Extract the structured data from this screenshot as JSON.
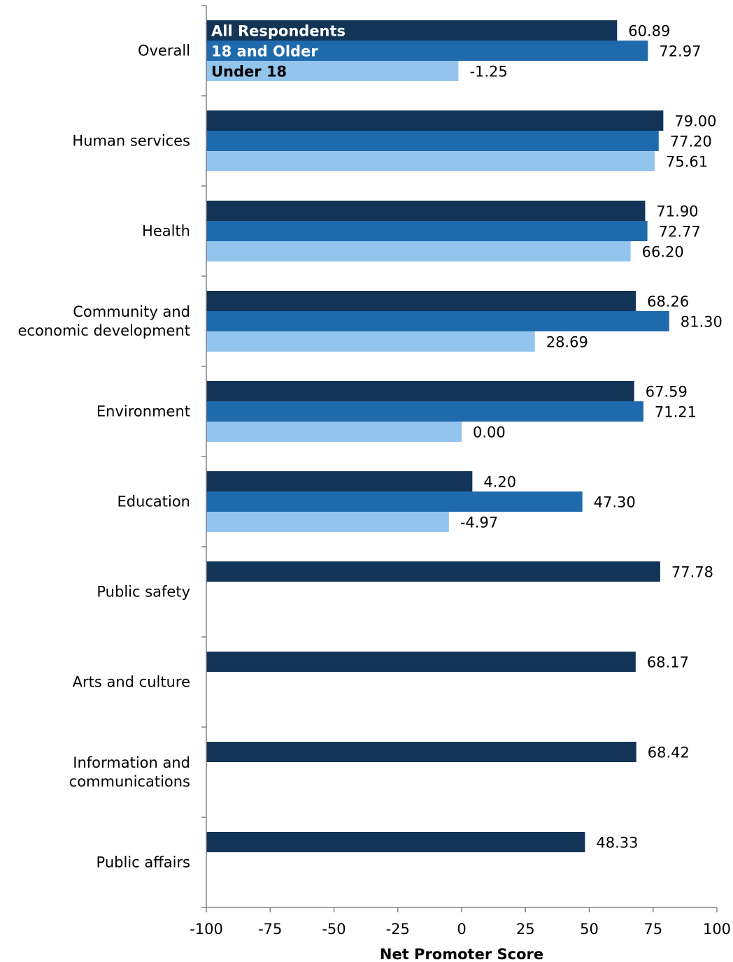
{
  "chart_data": {
    "type": "bar",
    "orientation": "horizontal",
    "xlabel": "Net Promoter Score",
    "xlim": [
      -100,
      100
    ],
    "xticks": [
      -100,
      -75,
      -50,
      -25,
      0,
      25,
      50,
      75,
      100
    ],
    "grid": false,
    "legend_placement": "inside first category group",
    "categories": [
      [
        "Overall"
      ],
      [
        "Human services"
      ],
      [
        "Health"
      ],
      [
        "Community and",
        "economic development"
      ],
      [
        "Environment"
      ],
      [
        "Education"
      ],
      [
        "Public safety"
      ],
      [
        "Arts and culture"
      ],
      [
        "Information and",
        "communications"
      ],
      [
        "Public affairs"
      ]
    ],
    "series": [
      {
        "name": "All Respondents",
        "color": "#123456",
        "label_color": "#ffffff",
        "values": [
          60.89,
          79.0,
          71.9,
          68.26,
          67.59,
          4.2,
          77.78,
          68.17,
          68.42,
          48.33
        ],
        "labels": [
          "60.89",
          "79.00",
          "71.90",
          "68.26",
          "67.59",
          "4.20",
          "77.78",
          "68.17",
          "68.42",
          "48.33"
        ]
      },
      {
        "name": "18 and Older",
        "color": "#1f6aad",
        "label_color": "#ffffff",
        "values": [
          72.97,
          77.2,
          72.77,
          81.3,
          71.21,
          47.3,
          null,
          null,
          null,
          null
        ],
        "labels": [
          "72.97",
          "77.20",
          "72.77",
          "81.30",
          "71.21",
          "47.30",
          null,
          null,
          null,
          null
        ]
      },
      {
        "name": "Under 18",
        "color": "#93c4ee",
        "label_color": "#000000",
        "values": [
          -1.25,
          75.61,
          66.2,
          28.69,
          0.0,
          -4.97,
          null,
          null,
          null,
          null
        ],
        "labels": [
          "-1.25",
          "75.61",
          "66.20",
          "28.69",
          "0.00",
          "-4.97",
          null,
          null,
          null,
          null
        ]
      }
    ]
  }
}
